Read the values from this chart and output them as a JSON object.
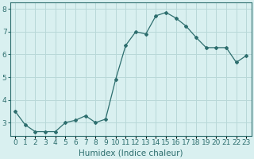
{
  "x": [
    0,
    1,
    2,
    3,
    4,
    5,
    6,
    7,
    8,
    9,
    10,
    11,
    12,
    13,
    14,
    15,
    16,
    17,
    18,
    19,
    20,
    21,
    22,
    23
  ],
  "y": [
    3.5,
    2.9,
    2.6,
    2.6,
    2.6,
    3.0,
    3.1,
    3.3,
    3.0,
    3.15,
    4.9,
    6.4,
    7.0,
    6.9,
    7.7,
    7.85,
    7.6,
    7.25,
    6.75,
    6.3,
    6.3,
    6.3,
    5.65,
    5.95
  ],
  "line_color": "#2d6e6e",
  "marker": "D",
  "marker_size": 2.0,
  "bg_color": "#d9f0f0",
  "grid_color": "#b8d8d8",
  "xlabel": "Humidex (Indice chaleur)",
  "xlim": [
    -0.5,
    23.5
  ],
  "ylim": [
    2.4,
    8.3
  ],
  "yticks": [
    3,
    4,
    5,
    6,
    7,
    8
  ],
  "xtick_labels": [
    "0",
    "1",
    "2",
    "3",
    "4",
    "5",
    "6",
    "7",
    "8",
    "9",
    "10",
    "11",
    "12",
    "13",
    "14",
    "15",
    "16",
    "17",
    "18",
    "19",
    "20",
    "21",
    "22",
    "23"
  ],
  "tick_fontsize": 6.5,
  "xlabel_fontsize": 7.5,
  "label_color": "#2d6e6e"
}
